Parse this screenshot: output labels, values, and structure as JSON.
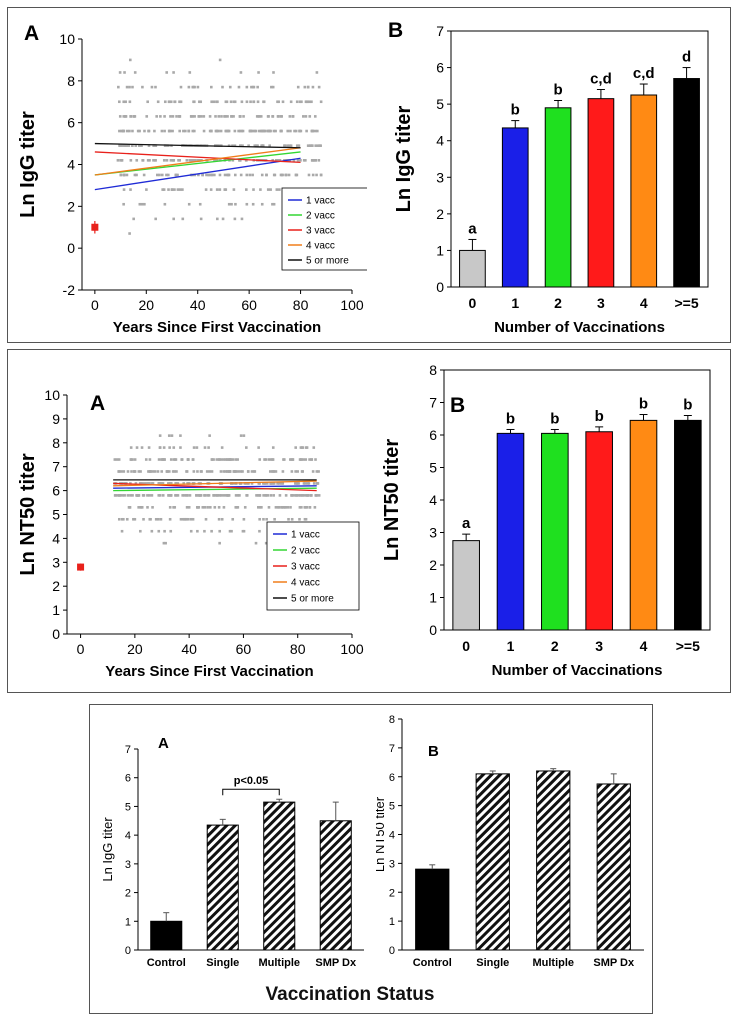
{
  "footer": {
    "label": "Vaccination Status"
  },
  "charts": {
    "igg_scatter": {
      "type": "scatter",
      "panel_letter": "A",
      "ylabel": "Ln IgG titer",
      "xlabel": "Years Since First Vaccination",
      "xlim": [
        -5,
        100
      ],
      "ylim": [
        -2,
        10
      ],
      "xticks": [
        0,
        20,
        40,
        60,
        80,
        100
      ],
      "yticks": [
        -2,
        0,
        2,
        4,
        6,
        8,
        10
      ],
      "control_point": {
        "x": 0,
        "y": 1.0,
        "err": 0.3,
        "color": "#e8211b"
      },
      "series": [
        {
          "name": "1 vacc",
          "color": "#1f2bd6",
          "line": [
            [
              0,
              2.8
            ],
            [
              80,
              4.3
            ]
          ]
        },
        {
          "name": "2 vacc",
          "color": "#33d633",
          "line": [
            [
              0,
              3.5
            ],
            [
              80,
              4.6
            ]
          ]
        },
        {
          "name": "3 vacc",
          "color": "#e8211b",
          "line": [
            [
              0,
              4.6
            ],
            [
              80,
              4.1
            ]
          ]
        },
        {
          "name": "4 vacc",
          "color": "#f07d1a",
          "line": [
            [
              0,
              3.5
            ],
            [
              80,
              4.8
            ]
          ]
        },
        {
          "name": "5 or more",
          "color": "#111111",
          "line": [
            [
              0,
              5.0
            ],
            [
              80,
              4.8
            ]
          ]
        }
      ],
      "legend_position": "lower-right",
      "scatter_seed": 11,
      "scatter_count": 520,
      "scatter_xrange": [
        8,
        88
      ],
      "scatter_mean": 5.0,
      "scatter_sd": 1.6,
      "scatter_levels": [
        -1,
        0.7,
        1.4,
        2.1,
        2.8,
        3.5,
        4.2,
        4.9,
        5.6,
        6.3,
        7.0,
        7.7,
        8.4,
        9.0
      ]
    },
    "igg_bar": {
      "type": "bar",
      "panel_letter": "B",
      "ylabel": "Ln IgG titer",
      "xlabel": "Number of Vaccinations",
      "ylim": [
        0,
        7
      ],
      "yticks": [
        0,
        1,
        2,
        3,
        4,
        5,
        6,
        7
      ],
      "categories": [
        "0",
        "1",
        "2",
        "3",
        "4",
        ">=5"
      ],
      "values": [
        1.0,
        4.35,
        4.9,
        5.15,
        5.25,
        5.7
      ],
      "errors": [
        0.3,
        0.2,
        0.2,
        0.25,
        0.3,
        0.3
      ],
      "letters": [
        "a",
        "b",
        "b",
        "c,d",
        "c,d",
        "d"
      ],
      "colors": [
        "#c8c8c8",
        "#1a1fe8",
        "#1fe01f",
        "#ff1a1a",
        "#ff8a14",
        "#000000"
      ]
    },
    "nt50_scatter": {
      "type": "scatter",
      "panel_letter": "A",
      "ylabel": "Ln NT50 titer",
      "xlabel": "Years Since First Vaccination",
      "xlim": [
        -5,
        100
      ],
      "ylim": [
        0,
        10
      ],
      "xticks": [
        0,
        20,
        40,
        60,
        80,
        100
      ],
      "yticks": [
        0,
        1,
        2,
        3,
        4,
        5,
        6,
        7,
        8,
        9,
        10
      ],
      "control_point": {
        "x": 0,
        "y": 2.8,
        "err": 0.15,
        "color": "#e8211b"
      },
      "series": [
        {
          "name": "1 vacc",
          "color": "#1f2bd6",
          "line": [
            [
              12,
              6.1
            ],
            [
              87,
              6.2
            ]
          ]
        },
        {
          "name": "2 vacc",
          "color": "#33d633",
          "line": [
            [
              12,
              6.0
            ],
            [
              87,
              6.1
            ]
          ]
        },
        {
          "name": "3 vacc",
          "color": "#e8211b",
          "line": [
            [
              12,
              6.3
            ],
            [
              87,
              6.0
            ]
          ]
        },
        {
          "name": "4 vacc",
          "color": "#f07d1a",
          "line": [
            [
              12,
              6.2
            ],
            [
              87,
              6.4
            ]
          ]
        },
        {
          "name": "5 or more",
          "color": "#111111",
          "line": [
            [
              12,
              6.45
            ],
            [
              87,
              6.45
            ]
          ]
        }
      ],
      "legend_position": "right",
      "scatter_seed": 29,
      "scatter_count": 480,
      "scatter_xrange": [
        12,
        88
      ],
      "scatter_mean": 6.2,
      "scatter_sd": 0.9,
      "scatter_levels": [
        1.4,
        2.8,
        3.3,
        3.8,
        4.3,
        4.8,
        5.3,
        5.8,
        6.3,
        6.8,
        7.3,
        7.8,
        8.3
      ]
    },
    "nt50_bar": {
      "type": "bar",
      "panel_letter": "B",
      "ylabel": "Ln NT50 titer",
      "xlabel": "Number of Vaccinations",
      "ylim": [
        0,
        8
      ],
      "yticks": [
        0,
        1,
        2,
        3,
        4,
        5,
        6,
        7,
        8
      ],
      "categories": [
        "0",
        "1",
        "2",
        "3",
        "4",
        ">=5"
      ],
      "values": [
        2.75,
        6.05,
        6.05,
        6.1,
        6.45,
        6.45
      ],
      "errors": [
        0.2,
        0.12,
        0.12,
        0.15,
        0.18,
        0.15
      ],
      "letters": [
        "a",
        "b",
        "b",
        "b",
        "b",
        "b"
      ],
      "colors": [
        "#c8c8c8",
        "#1a1fe8",
        "#1fe01f",
        "#ff1a1a",
        "#ff8a14",
        "#000000"
      ]
    },
    "status_igg": {
      "type": "bar",
      "panel_letter": "A",
      "ylabel": "Ln IgG titer",
      "ylim": [
        0,
        7
      ],
      "yticks": [
        0,
        1,
        2,
        3,
        4,
        5,
        6,
        7
      ],
      "categories": [
        "Control",
        "Single",
        "Multiple",
        "SMP Dx"
      ],
      "values": [
        1.0,
        4.35,
        5.15,
        4.5
      ],
      "errors": [
        0.3,
        0.2,
        0.1,
        0.65
      ],
      "fills": [
        "solid",
        "hatch",
        "hatch",
        "hatch"
      ],
      "annotation": "p<0.05"
    },
    "status_nt50": {
      "type": "bar",
      "panel_letter": "B",
      "ylabel": "Ln NT50 titer",
      "ylim": [
        0,
        8
      ],
      "yticks": [
        0,
        1,
        2,
        3,
        4,
        5,
        6,
        7,
        8
      ],
      "categories": [
        "Control",
        "Single",
        "Multiple",
        "SMP Dx"
      ],
      "values": [
        2.8,
        6.1,
        6.2,
        5.75
      ],
      "errors": [
        0.15,
        0.1,
        0.08,
        0.35
      ],
      "fills": [
        "solid",
        "hatch",
        "hatch",
        "hatch"
      ]
    }
  }
}
